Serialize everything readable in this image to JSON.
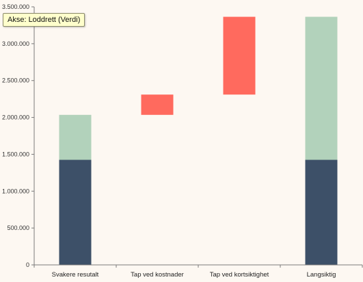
{
  "tooltip": {
    "text": "Akse: Loddrett (Verdi)"
  },
  "chart_data": {
    "type": "bar",
    "stacked": true,
    "style": "waterfall",
    "categories": [
      "Svakere resutalt",
      "Tap ved kostnader",
      "Tap ved kortsiktighet",
      "Langsiktig"
    ],
    "segments": [
      [
        {
          "from": 0,
          "to": 1425000,
          "color": "#3d5068"
        },
        {
          "from": 1425000,
          "to": 2035000,
          "color": "#b2d2bb"
        }
      ],
      [
        {
          "from": 2035000,
          "to": 2310000,
          "color": "#ff6a5e"
        }
      ],
      [
        {
          "from": 2310000,
          "to": 3365000,
          "color": "#ff6a5e"
        }
      ],
      [
        {
          "from": 0,
          "to": 1425000,
          "color": "#3d5068"
        },
        {
          "from": 1425000,
          "to": 3365000,
          "color": "#b2d2bb"
        }
      ]
    ],
    "ylim": [
      0,
      3500000
    ],
    "yticks": [
      0,
      500000,
      1000000,
      1500000,
      2000000,
      2500000,
      3000000,
      3500000
    ],
    "ytick_labels": [
      "0",
      "500.000",
      "1.000.000",
      "1.500.000",
      "2.000.000",
      "2.500.000",
      "3.000.000",
      "3.500.000"
    ],
    "grid": false,
    "legend": "none"
  }
}
